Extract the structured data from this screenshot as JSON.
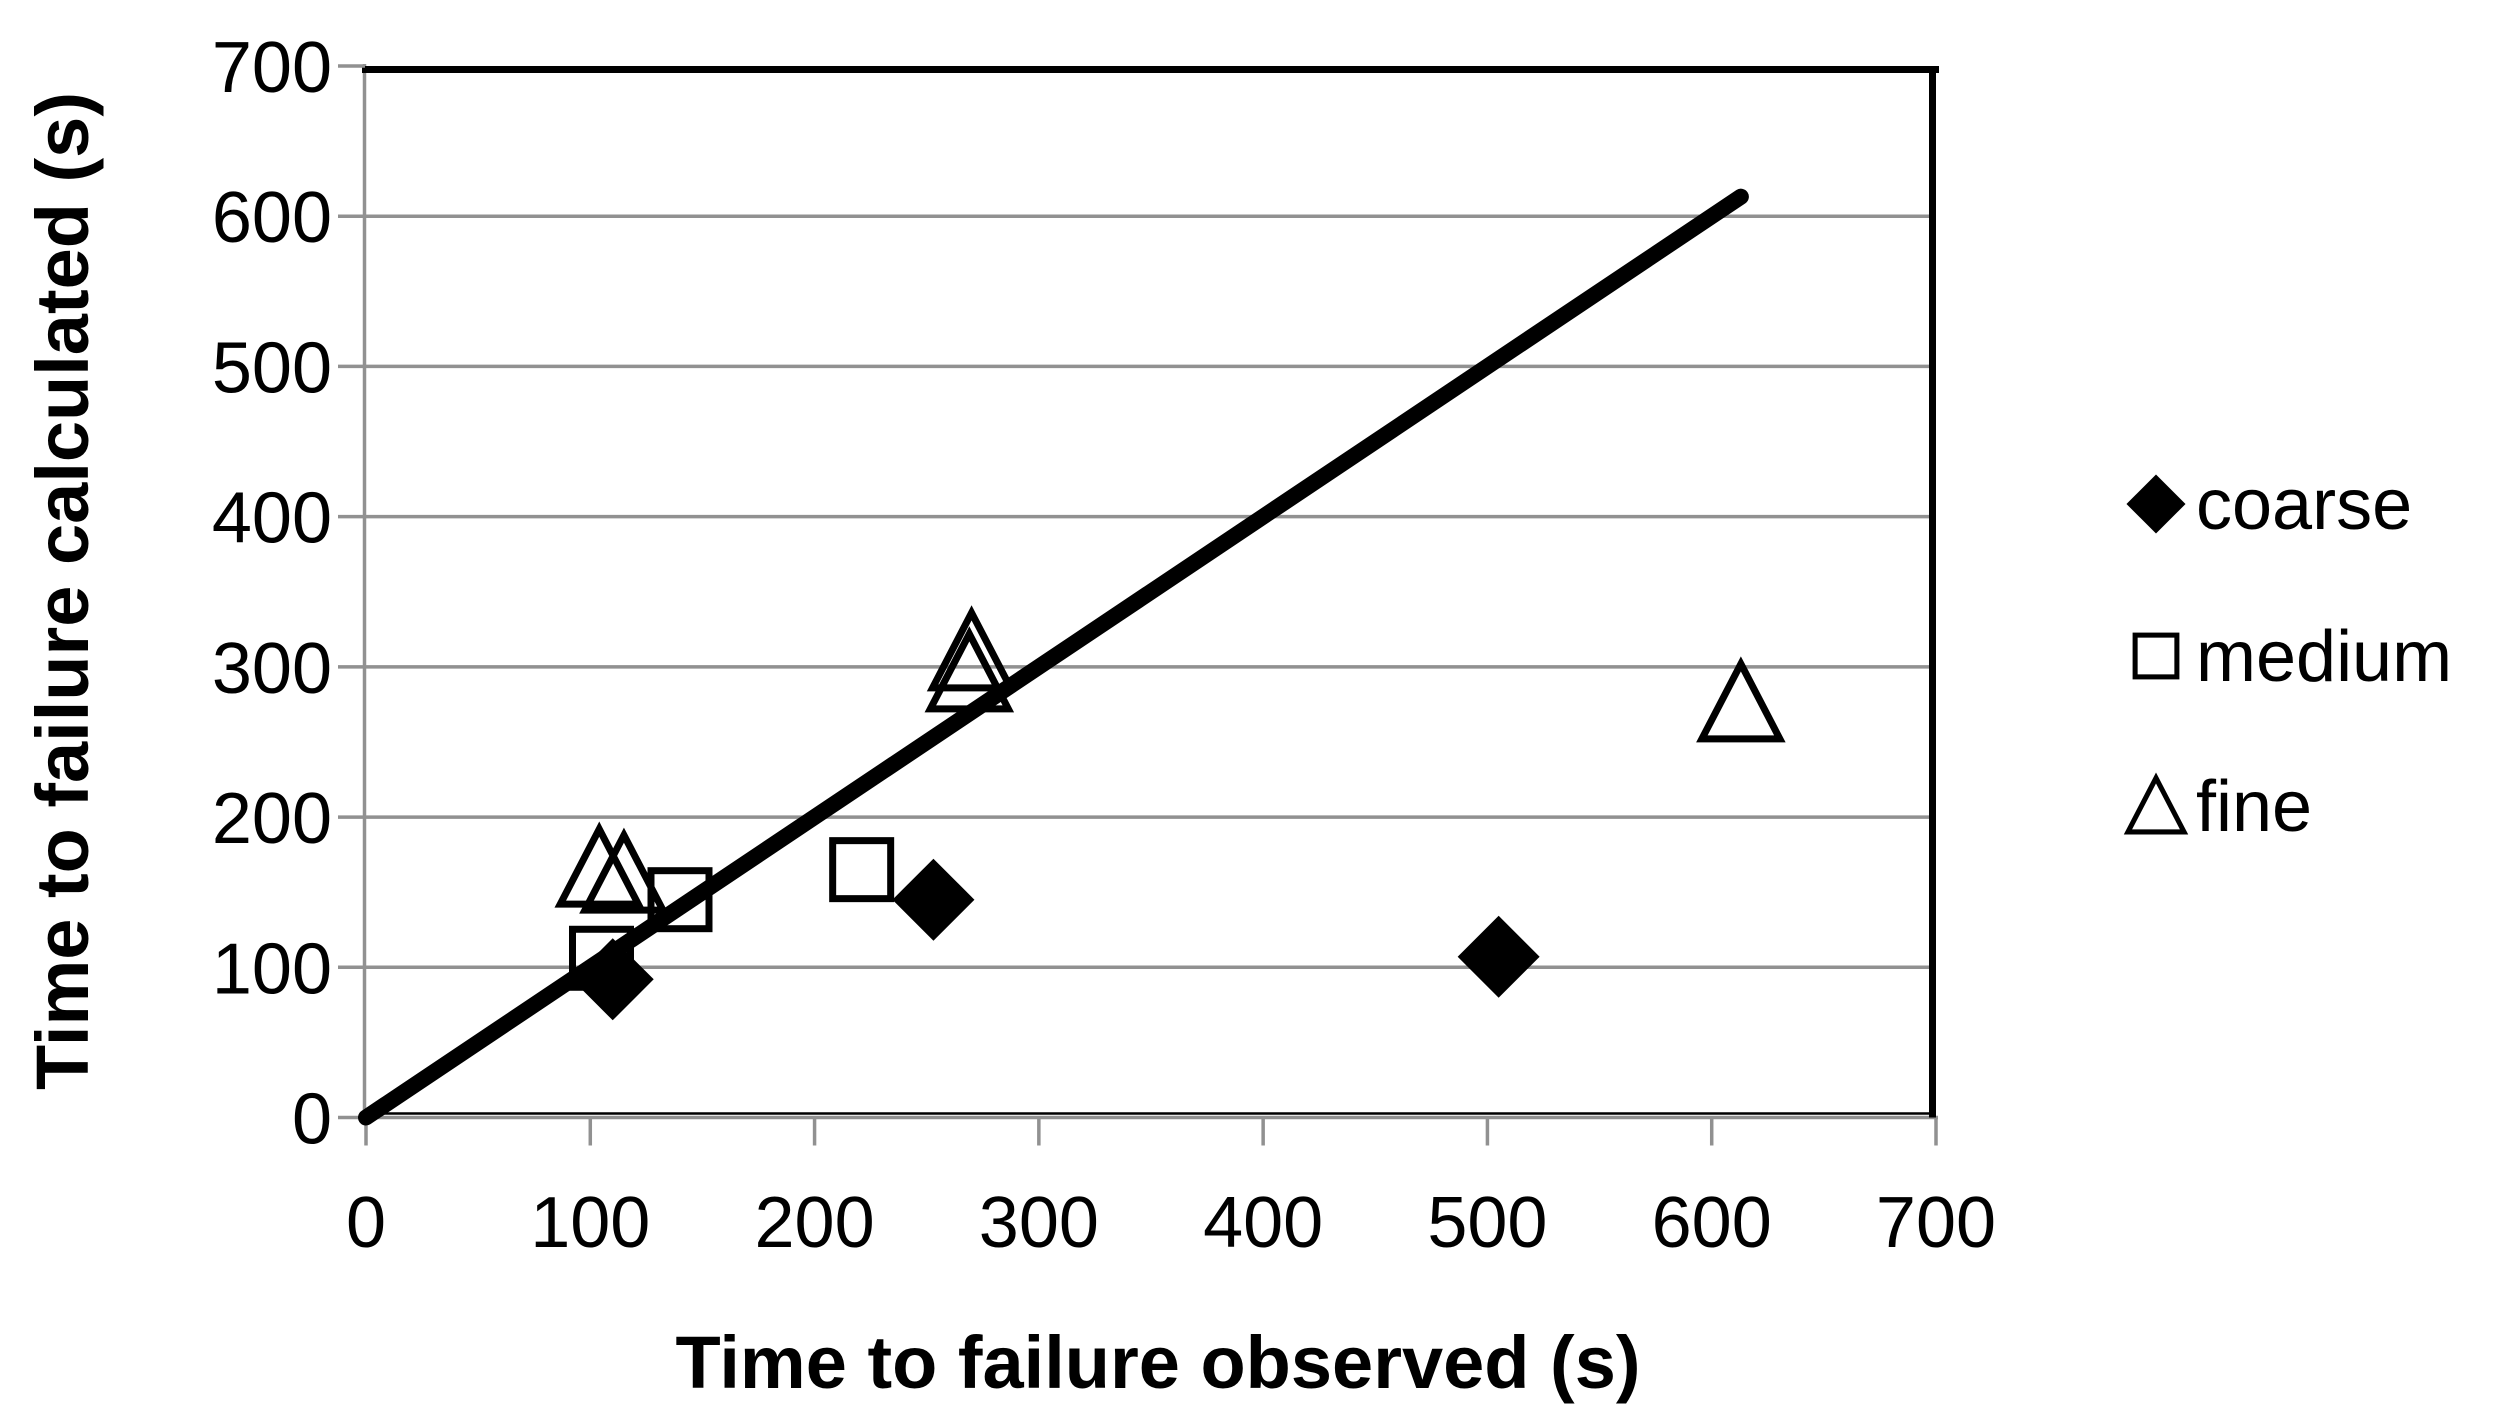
{
  "chart_data": {
    "type": "scatter",
    "title": "",
    "xlabel": "Time to failure observed (s)",
    "ylabel": "Time to failure calculated (s)",
    "xlim": [
      0,
      700
    ],
    "ylim": [
      0,
      700
    ],
    "xticks": [
      "0",
      "100",
      "200",
      "300",
      "400",
      "500",
      "600",
      "700"
    ],
    "yticks": [
      "0",
      "100",
      "200",
      "300",
      "400",
      "500",
      "600",
      "700"
    ],
    "grid": "horizontal-gridlines",
    "legend_position": "right",
    "series": [
      {
        "name": "coarse",
        "marker": "filled-diamond",
        "color": "#000000",
        "points": [
          [
            110,
            92
          ],
          [
            253,
            145
          ],
          [
            505,
            107
          ]
        ]
      },
      {
        "name": "medium",
        "marker": "open-square",
        "color": "#000000",
        "points": [
          [
            105,
            106
          ],
          [
            140,
            145
          ],
          [
            221,
            165
          ]
        ]
      },
      {
        "name": "fine",
        "marker": "open-triangle",
        "color": "#000000",
        "points": [
          [
            104,
            166
          ],
          [
            115,
            162
          ],
          [
            269,
            296
          ],
          [
            270,
            310
          ],
          [
            613,
            276
          ]
        ]
      }
    ],
    "identity_line": {
      "from": [
        0,
        0
      ],
      "to": [
        613,
        613
      ]
    },
    "colors": {
      "marker": "#000000",
      "gridline": "#919191",
      "axis": "#919191",
      "plot_border": "#000000",
      "text": "#000000",
      "background": "#ffffff"
    }
  }
}
